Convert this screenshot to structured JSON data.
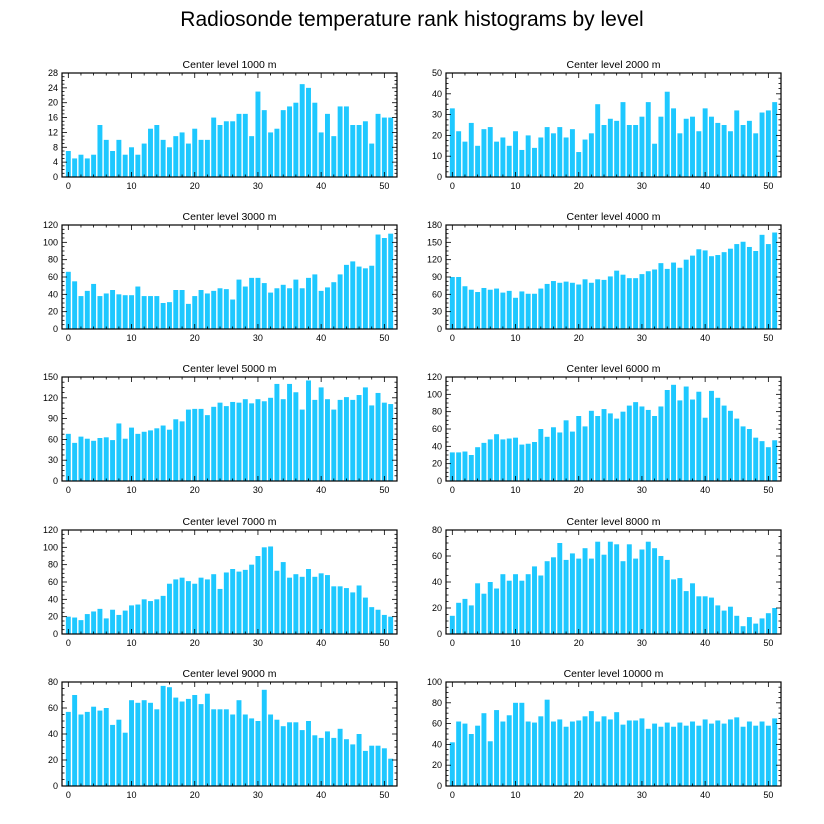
{
  "title": "Radiosonde temperature rank histograms by level",
  "colors": {
    "bar": "#1ec8ff",
    "axis": "#000000",
    "background": "#ffffff"
  },
  "chart_data": [
    {
      "type": "bar",
      "title": "Center level 1000 m",
      "xlabel": "",
      "ylabel": "",
      "xlim": [
        -1,
        52
      ],
      "ylim": [
        0,
        28
      ],
      "yticks": [
        0,
        4,
        8,
        12,
        16,
        20,
        24,
        28
      ],
      "xticks": [
        0,
        10,
        20,
        30,
        40,
        50
      ],
      "ytick_side": "left",
      "x": [
        0,
        1,
        2,
        3,
        4,
        5,
        6,
        7,
        8,
        9,
        10,
        11,
        12,
        13,
        14,
        15,
        16,
        17,
        18,
        19,
        20,
        21,
        22,
        23,
        24,
        25,
        26,
        27,
        28,
        29,
        30,
        31,
        32,
        33,
        34,
        35,
        36,
        37,
        38,
        39,
        40,
        41,
        42,
        43,
        44,
        45,
        46,
        47,
        48,
        49,
        50,
        51
      ],
      "values": [
        7,
        5,
        6,
        5,
        6,
        14,
        10,
        7,
        10,
        6,
        8,
        6,
        9,
        13,
        14,
        10,
        8,
        11,
        12,
        9,
        13,
        10,
        10,
        16,
        14,
        15,
        15,
        17,
        17,
        11,
        23,
        18,
        12,
        13,
        18,
        19,
        20,
        25,
        24,
        20,
        12,
        17,
        11,
        19,
        19,
        14,
        14,
        15,
        9,
        17,
        16,
        16
      ]
    },
    {
      "type": "bar",
      "title": "Center level 2000 m",
      "xlabel": "",
      "ylabel": "",
      "xlim": [
        -1,
        52
      ],
      "ylim": [
        0,
        50
      ],
      "yticks": [
        0,
        10,
        20,
        30,
        40,
        50
      ],
      "xticks": [
        0,
        10,
        20,
        30,
        40,
        50
      ],
      "ytick_side": "right",
      "x": [
        0,
        1,
        2,
        3,
        4,
        5,
        6,
        7,
        8,
        9,
        10,
        11,
        12,
        13,
        14,
        15,
        16,
        17,
        18,
        19,
        20,
        21,
        22,
        23,
        24,
        25,
        26,
        27,
        28,
        29,
        30,
        31,
        32,
        33,
        34,
        35,
        36,
        37,
        38,
        39,
        40,
        41,
        42,
        43,
        44,
        45,
        46,
        47,
        48,
        49,
        50,
        51
      ],
      "values": [
        33,
        22,
        17,
        26,
        15,
        23,
        24,
        17,
        19,
        15,
        22,
        13,
        20,
        14,
        19,
        24,
        21,
        24,
        19,
        23,
        12,
        18,
        21,
        35,
        25,
        28,
        27,
        36,
        25,
        25,
        29,
        36,
        16,
        29,
        41,
        33,
        21,
        28,
        29,
        22,
        33,
        29,
        26,
        25,
        22,
        32,
        25,
        27,
        21,
        31,
        32,
        36
      ]
    },
    {
      "type": "bar",
      "title": "Center level 3000 m",
      "xlabel": "",
      "ylabel": "",
      "xlim": [
        -1,
        52
      ],
      "ylim": [
        0,
        120
      ],
      "yticks": [
        0,
        20,
        40,
        60,
        80,
        100,
        120
      ],
      "xticks": [
        0,
        10,
        20,
        30,
        40,
        50
      ],
      "ytick_side": "left",
      "x": [
        0,
        1,
        2,
        3,
        4,
        5,
        6,
        7,
        8,
        9,
        10,
        11,
        12,
        13,
        14,
        15,
        16,
        17,
        18,
        19,
        20,
        21,
        22,
        23,
        24,
        25,
        26,
        27,
        28,
        29,
        30,
        31,
        32,
        33,
        34,
        35,
        36,
        37,
        38,
        39,
        40,
        41,
        42,
        43,
        44,
        45,
        46,
        47,
        48,
        49,
        50,
        51
      ],
      "values": [
        66,
        55,
        38,
        44,
        52,
        38,
        41,
        45,
        40,
        39,
        39,
        49,
        38,
        38,
        38,
        30,
        31,
        45,
        45,
        29,
        38,
        45,
        41,
        44,
        47,
        46,
        34,
        57,
        49,
        59,
        59,
        53,
        42,
        47,
        51,
        47,
        57,
        47,
        59,
        63,
        44,
        48,
        54,
        63,
        74,
        78,
        72,
        70,
        73,
        109,
        105,
        110
      ]
    },
    {
      "type": "bar",
      "title": "Center level 4000 m",
      "xlabel": "",
      "ylabel": "",
      "xlim": [
        -1,
        52
      ],
      "ylim": [
        0,
        180
      ],
      "yticks": [
        0,
        30,
        60,
        90,
        120,
        150,
        180
      ],
      "xticks": [
        0,
        10,
        20,
        30,
        40,
        50
      ],
      "ytick_side": "right",
      "x": [
        0,
        1,
        2,
        3,
        4,
        5,
        6,
        7,
        8,
        9,
        10,
        11,
        12,
        13,
        14,
        15,
        16,
        17,
        18,
        19,
        20,
        21,
        22,
        23,
        24,
        25,
        26,
        27,
        28,
        29,
        30,
        31,
        32,
        33,
        34,
        35,
        36,
        37,
        38,
        39,
        40,
        41,
        42,
        43,
        44,
        45,
        46,
        47,
        48,
        49,
        50,
        51
      ],
      "values": [
        90,
        90,
        74,
        68,
        64,
        71,
        68,
        70,
        63,
        66,
        54,
        65,
        61,
        61,
        70,
        78,
        83,
        80,
        82,
        80,
        77,
        86,
        80,
        86,
        85,
        91,
        101,
        94,
        88,
        88,
        95,
        100,
        103,
        114,
        104,
        115,
        106,
        120,
        127,
        138,
        136,
        126,
        128,
        133,
        139,
        147,
        151,
        142,
        135,
        163,
        147,
        167
      ]
    },
    {
      "type": "bar",
      "title": "Center level 5000 m",
      "xlabel": "",
      "ylabel": "",
      "xlim": [
        -1,
        52
      ],
      "ylim": [
        0,
        150
      ],
      "yticks": [
        0,
        30,
        60,
        90,
        120,
        150
      ],
      "xticks": [
        0,
        10,
        20,
        30,
        40,
        50
      ],
      "ytick_side": "left",
      "x": [
        0,
        1,
        2,
        3,
        4,
        5,
        6,
        7,
        8,
        9,
        10,
        11,
        12,
        13,
        14,
        15,
        16,
        17,
        18,
        19,
        20,
        21,
        22,
        23,
        24,
        25,
        26,
        27,
        28,
        29,
        30,
        31,
        32,
        33,
        34,
        35,
        36,
        37,
        38,
        39,
        40,
        41,
        42,
        43,
        44,
        45,
        46,
        47,
        48,
        49,
        50,
        51
      ],
      "values": [
        68,
        55,
        64,
        61,
        58,
        62,
        63,
        59,
        83,
        61,
        77,
        68,
        71,
        73,
        76,
        80,
        74,
        89,
        86,
        103,
        104,
        104,
        95,
        107,
        113,
        108,
        114,
        113,
        118,
        112,
        118,
        115,
        120,
        140,
        118,
        140,
        128,
        103,
        145,
        117,
        135,
        118,
        103,
        117,
        121,
        117,
        124,
        135,
        109,
        127,
        113,
        111
      ]
    },
    {
      "type": "bar",
      "title": "Center level 6000 m",
      "xlabel": "",
      "ylabel": "",
      "xlim": [
        -1,
        52
      ],
      "ylim": [
        0,
        120
      ],
      "yticks": [
        0,
        20,
        40,
        60,
        80,
        100,
        120
      ],
      "xticks": [
        0,
        10,
        20,
        30,
        40,
        50
      ],
      "ytick_side": "right",
      "x": [
        0,
        1,
        2,
        3,
        4,
        5,
        6,
        7,
        8,
        9,
        10,
        11,
        12,
        13,
        14,
        15,
        16,
        17,
        18,
        19,
        20,
        21,
        22,
        23,
        24,
        25,
        26,
        27,
        28,
        29,
        30,
        31,
        32,
        33,
        34,
        35,
        36,
        37,
        38,
        39,
        40,
        41,
        42,
        43,
        44,
        45,
        46,
        47,
        48,
        49,
        50,
        51
      ],
      "values": [
        33,
        33,
        34,
        30,
        39,
        44,
        48,
        54,
        48,
        49,
        50,
        42,
        43,
        45,
        60,
        51,
        62,
        56,
        70,
        57,
        75,
        63,
        81,
        75,
        83,
        78,
        72,
        80,
        87,
        91,
        86,
        82,
        75,
        86,
        105,
        111,
        93,
        109,
        94,
        103,
        73,
        104,
        96,
        87,
        81,
        72,
        63,
        60,
        50,
        46,
        39,
        47
      ]
    },
    {
      "type": "bar",
      "title": "Center level 7000 m",
      "xlabel": "",
      "ylabel": "",
      "xlim": [
        -1,
        52
      ],
      "ylim": [
        0,
        120
      ],
      "yticks": [
        0,
        20,
        40,
        60,
        80,
        100,
        120
      ],
      "xticks": [
        0,
        10,
        20,
        30,
        40,
        50
      ],
      "ytick_side": "left",
      "x": [
        0,
        1,
        2,
        3,
        4,
        5,
        6,
        7,
        8,
        9,
        10,
        11,
        12,
        13,
        14,
        15,
        16,
        17,
        18,
        19,
        20,
        21,
        22,
        23,
        24,
        25,
        26,
        27,
        28,
        29,
        30,
        31,
        32,
        33,
        34,
        35,
        36,
        37,
        38,
        39,
        40,
        41,
        42,
        43,
        44,
        45,
        46,
        47,
        48,
        49,
        50,
        51
      ],
      "values": [
        20,
        19,
        16,
        23,
        26,
        29,
        18,
        28,
        22,
        27,
        33,
        34,
        40,
        38,
        40,
        44,
        58,
        63,
        65,
        61,
        58,
        65,
        63,
        69,
        52,
        71,
        75,
        72,
        74,
        80,
        90,
        100,
        101,
        73,
        83,
        65,
        69,
        66,
        75,
        66,
        70,
        68,
        55,
        55,
        53,
        48,
        56,
        42,
        31,
        28,
        22,
        20
      ]
    },
    {
      "type": "bar",
      "title": "Center level 8000 m",
      "xlabel": "",
      "ylabel": "",
      "xlim": [
        -1,
        52
      ],
      "ylim": [
        0,
        80
      ],
      "yticks": [
        0,
        20,
        40,
        60,
        80
      ],
      "xticks": [
        0,
        10,
        20,
        30,
        40,
        50
      ],
      "ytick_side": "right",
      "x": [
        0,
        1,
        2,
        3,
        4,
        5,
        6,
        7,
        8,
        9,
        10,
        11,
        12,
        13,
        14,
        15,
        16,
        17,
        18,
        19,
        20,
        21,
        22,
        23,
        24,
        25,
        26,
        27,
        28,
        29,
        30,
        31,
        32,
        33,
        34,
        35,
        36,
        37,
        38,
        39,
        40,
        41,
        42,
        43,
        44,
        45,
        46,
        47,
        48,
        49,
        50,
        51
      ],
      "values": [
        14,
        24,
        27,
        22,
        39,
        31,
        40,
        35,
        46,
        41,
        46,
        41,
        46,
        52,
        45,
        56,
        59,
        70,
        57,
        62,
        58,
        66,
        58,
        71,
        61,
        71,
        69,
        56,
        69,
        58,
        65,
        71,
        66,
        60,
        57,
        42,
        43,
        33,
        39,
        29,
        29,
        28,
        22,
        18,
        21,
        14,
        6,
        13,
        8,
        12,
        16,
        20
      ]
    },
    {
      "type": "bar",
      "title": "Center level 9000 m",
      "xlabel": "",
      "ylabel": "",
      "xlim": [
        -1,
        52
      ],
      "ylim": [
        0,
        80
      ],
      "yticks": [
        0,
        20,
        40,
        60,
        80
      ],
      "xticks": [
        0,
        10,
        20,
        30,
        40,
        50
      ],
      "ytick_side": "left",
      "x": [
        0,
        1,
        2,
        3,
        4,
        5,
        6,
        7,
        8,
        9,
        10,
        11,
        12,
        13,
        14,
        15,
        16,
        17,
        18,
        19,
        20,
        21,
        22,
        23,
        24,
        25,
        26,
        27,
        28,
        29,
        30,
        31,
        32,
        33,
        34,
        35,
        36,
        37,
        38,
        39,
        40,
        41,
        42,
        43,
        44,
        45,
        46,
        47,
        48,
        49,
        50,
        51
      ],
      "values": [
        57,
        70,
        55,
        57,
        61,
        58,
        60,
        47,
        51,
        41,
        66,
        64,
        66,
        64,
        59,
        77,
        76,
        68,
        65,
        67,
        70,
        63,
        71,
        59,
        59,
        59,
        55,
        66,
        55,
        52,
        50,
        74,
        55,
        51,
        46,
        49,
        49,
        43,
        50,
        39,
        37,
        42,
        37,
        44,
        36,
        32,
        40,
        27,
        31,
        31,
        29,
        21
      ]
    },
    {
      "type": "bar",
      "title": "Center level 10000 m",
      "xlabel": "",
      "ylabel": "",
      "xlim": [
        -1,
        52
      ],
      "ylim": [
        0,
        100
      ],
      "yticks": [
        0,
        20,
        40,
        60,
        80,
        100
      ],
      "xticks": [
        0,
        10,
        20,
        30,
        40,
        50
      ],
      "ytick_side": "right",
      "x": [
        0,
        1,
        2,
        3,
        4,
        5,
        6,
        7,
        8,
        9,
        10,
        11,
        12,
        13,
        14,
        15,
        16,
        17,
        18,
        19,
        20,
        21,
        22,
        23,
        24,
        25,
        26,
        27,
        28,
        29,
        30,
        31,
        32,
        33,
        34,
        35,
        36,
        37,
        38,
        39,
        40,
        41,
        42,
        43,
        44,
        45,
        46,
        47,
        48,
        49,
        50,
        51
      ],
      "values": [
        42,
        62,
        60,
        50,
        58,
        70,
        43,
        73,
        62,
        68,
        80,
        80,
        62,
        61,
        67,
        83,
        62,
        64,
        57,
        62,
        63,
        67,
        72,
        62,
        67,
        64,
        71,
        59,
        63,
        63,
        65,
        55,
        60,
        57,
        61,
        57,
        61,
        58,
        62,
        58,
        64,
        60,
        63,
        60,
        64,
        66,
        57,
        62,
        58,
        62,
        58,
        65
      ]
    }
  ]
}
